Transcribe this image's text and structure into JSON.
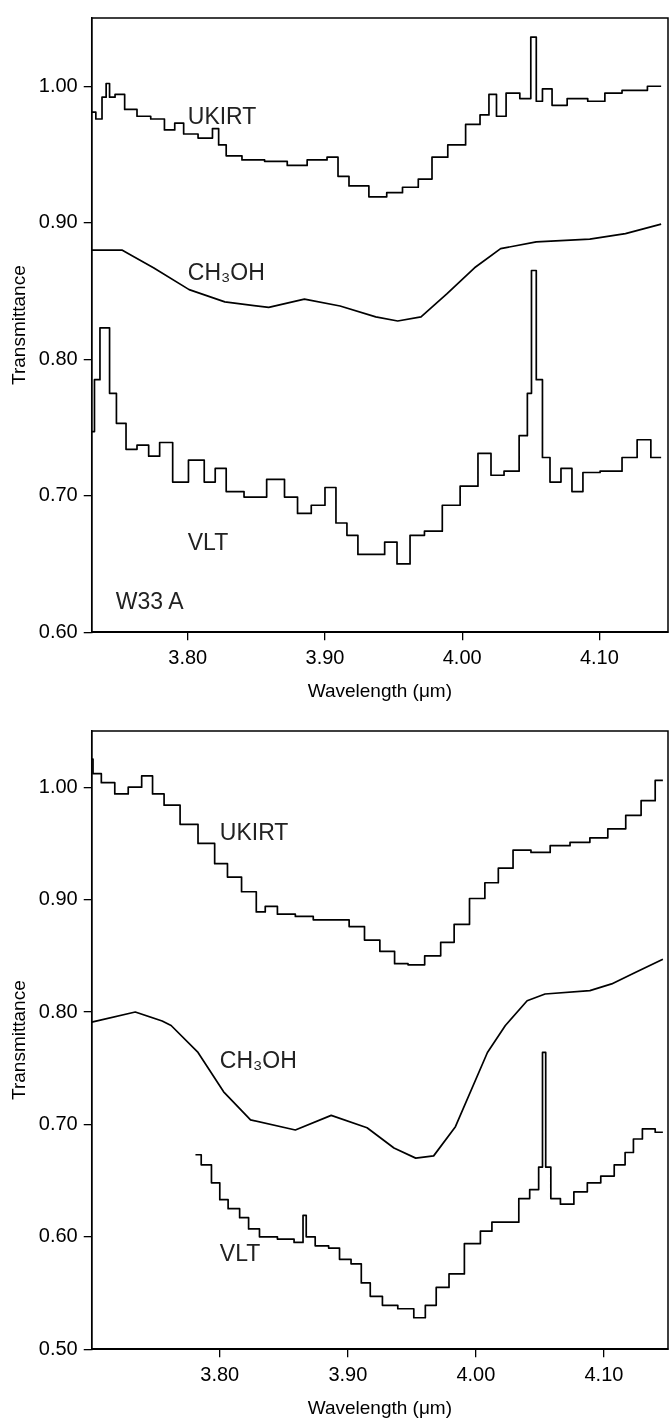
{
  "chart_data": [
    {
      "type": "step",
      "xlabel": "Wavelength (μm)",
      "ylabel": "Transmittance",
      "xlim": [
        3.73,
        4.15
      ],
      "ylim": [
        0.6,
        1.05
      ],
      "xticks": [
        {
          "value": 3.8,
          "label": "3.80"
        },
        {
          "value": 3.9,
          "label": "3.90"
        },
        {
          "value": 4.0,
          "label": "4.00"
        },
        {
          "value": 4.1,
          "label": "4.10"
        }
      ],
      "yticks": [
        {
          "value": 0.6,
          "label": "0.60"
        },
        {
          "value": 0.7,
          "label": "0.70"
        },
        {
          "value": 0.8,
          "label": "0.80"
        },
        {
          "value": 0.9,
          "label": "0.90"
        },
        {
          "value": 1.0,
          "label": "1.00"
        }
      ],
      "annotations": [
        "W33 A"
      ],
      "series": [
        {
          "name": "UKIRT",
          "color": "#000000",
          "x": [
            3.73,
            3.736,
            3.739,
            3.742,
            3.744,
            3.75,
            3.758,
            3.768,
            3.778,
            3.788,
            3.793,
            3.801,
            3.814,
            3.822,
            3.823,
            3.833,
            3.846,
            3.866,
            3.879,
            3.895,
            3.908,
            3.911,
            3.924,
            3.94,
            3.95,
            3.963,
            3.973,
            3.983,
            3.996,
            4.009,
            4.017,
            4.022,
            4.028,
            4.036,
            4.048,
            4.052,
            4.056,
            4.061,
            4.07,
            4.083,
            4.1,
            4.108,
            4.125,
            4.145
          ],
          "values": [
            0.981,
            0.976,
            0.992,
            1.002,
            0.992,
            0.994,
            0.983,
            0.978,
            0.976,
            0.968,
            0.973,
            0.965,
            0.962,
            0.969,
            0.957,
            0.949,
            0.946,
            0.945,
            0.942,
            0.946,
            0.948,
            0.934,
            0.927,
            0.919,
            0.922,
            0.926,
            0.932,
            0.948,
            0.957,
            0.972,
            0.979,
            0.994,
            0.978,
            0.995,
            0.991,
            1.036,
            0.989,
            0.998,
            0.986,
            0.991,
            0.989,
            0.995,
            0.997,
            1.0
          ]
        },
        {
          "name": "CH₃OH",
          "type": "line",
          "color": "#000000",
          "x": [
            3.73,
            3.752,
            3.775,
            3.801,
            3.827,
            3.859,
            3.885,
            3.911,
            3.937,
            3.953,
            3.97,
            3.989,
            4.009,
            4.028,
            4.054,
            4.093,
            4.119,
            4.145
          ],
          "values": [
            0.88,
            0.88,
            0.867,
            0.851,
            0.842,
            0.838,
            0.844,
            0.839,
            0.831,
            0.828,
            0.831,
            0.848,
            0.867,
            0.881,
            0.886,
            0.888,
            0.892,
            0.899
          ]
        },
        {
          "name": "VLT",
          "color": "#000000",
          "x": [
            3.73,
            3.734,
            3.738,
            3.742,
            3.744,
            3.752,
            3.758,
            3.768,
            3.775,
            3.784,
            3.794,
            3.807,
            3.817,
            3.823,
            3.833,
            3.849,
            3.866,
            3.875,
            3.885,
            3.895,
            3.905,
            3.911,
            3.921,
            3.927,
            3.94,
            3.947,
            3.958,
            3.966,
            3.979,
            3.992,
            4.005,
            4.018,
            4.024,
            4.037,
            4.046,
            4.049,
            4.052,
            4.056,
            4.061,
            4.067,
            4.077,
            4.083,
            4.093,
            4.108,
            4.125,
            4.13,
            4.145
          ],
          "values": [
            0.747,
            0.785,
            0.823,
            0.823,
            0.775,
            0.753,
            0.734,
            0.737,
            0.729,
            0.739,
            0.71,
            0.726,
            0.71,
            0.72,
            0.703,
            0.699,
            0.712,
            0.699,
            0.687,
            0.693,
            0.706,
            0.68,
            0.671,
            0.657,
            0.657,
            0.666,
            0.65,
            0.671,
            0.674,
            0.693,
            0.707,
            0.731,
            0.715,
            0.718,
            0.744,
            0.775,
            0.865,
            0.785,
            0.728,
            0.71,
            0.72,
            0.703,
            0.717,
            0.718,
            0.728,
            0.741,
            0.728
          ]
        }
      ]
    },
    {
      "type": "step",
      "xlabel": "Wavelength (μm)",
      "ylabel": "Transmittance",
      "xlim": [
        3.7,
        4.15
      ],
      "ylim": [
        0.5,
        1.05
      ],
      "xticks": [
        {
          "value": 3.8,
          "label": "3.80"
        },
        {
          "value": 3.9,
          "label": "3.90"
        },
        {
          "value": 4.0,
          "label": "4.00"
        },
        {
          "value": 4.1,
          "label": "4.10"
        }
      ],
      "yticks": [
        {
          "value": 0.5,
          "label": "0.50"
        },
        {
          "value": 0.6,
          "label": "0.60"
        },
        {
          "value": 0.7,
          "label": "0.70"
        },
        {
          "value": 0.8,
          "label": "0.80"
        },
        {
          "value": 0.9,
          "label": "0.90"
        },
        {
          "value": 1.0,
          "label": "1.00"
        }
      ],
      "series": [
        {
          "name": "UKIRT",
          "color": "#000000",
          "x": [
            3.7,
            3.702,
            3.713,
            3.723,
            3.734,
            3.744,
            3.751,
            3.762,
            3.776,
            3.79,
            3.802,
            3.81,
            3.824,
            3.833,
            3.838,
            3.852,
            3.866,
            3.88,
            3.894,
            3.908,
            3.918,
            3.932,
            3.941,
            3.953,
            3.967,
            3.978,
            3.988,
            4.002,
            4.012,
            4.023,
            4.035,
            4.051,
            4.065,
            4.082,
            4.096,
            4.11,
            4.124,
            4.134,
            4.146
          ],
          "values": [
            1.025,
            1.012,
            1.004,
            0.994,
            1.0,
            1.01,
            0.994,
            0.984,
            0.967,
            0.95,
            0.932,
            0.92,
            0.907,
            0.889,
            0.894,
            0.887,
            0.885,
            0.882,
            0.882,
            0.876,
            0.864,
            0.854,
            0.843,
            0.842,
            0.85,
            0.862,
            0.878,
            0.901,
            0.915,
            0.928,
            0.944,
            0.942,
            0.948,
            0.951,
            0.955,
            0.963,
            0.975,
            0.988,
            1.006
          ]
        },
        {
          "name": "CH₃OH",
          "type": "line",
          "color": "#000000",
          "x": [
            3.7,
            3.734,
            3.755,
            3.762,
            3.783,
            3.803,
            3.824,
            3.859,
            3.887,
            3.915,
            3.936,
            3.953,
            3.967,
            3.984,
            4.009,
            4.023,
            4.04,
            4.054,
            4.089,
            4.106,
            4.124,
            4.146
          ],
          "values": [
            0.791,
            0.8,
            0.792,
            0.788,
            0.764,
            0.729,
            0.704,
            0.695,
            0.708,
            0.697,
            0.679,
            0.67,
            0.672,
            0.698,
            0.764,
            0.788,
            0.81,
            0.816,
            0.819,
            0.825,
            0.835,
            0.847
          ]
        },
        {
          "name": "VLT",
          "color": "#000000",
          "x": [
            3.781,
            3.79,
            3.797,
            3.803,
            3.81,
            3.821,
            3.824,
            3.838,
            3.852,
            3.864,
            3.866,
            3.869,
            3.88,
            3.89,
            3.897,
            3.908,
            3.913,
            3.922,
            3.932,
            3.946,
            3.957,
            3.964,
            3.974,
            3.984,
            3.998,
            4.009,
            4.016,
            4.03,
            4.037,
            4.047,
            4.051,
            4.053,
            4.056,
            4.061,
            4.071,
            4.082,
            4.092,
            4.103,
            4.113,
            4.12,
            4.126,
            4.134,
            4.146
          ],
          "values": [
            0.673,
            0.664,
            0.648,
            0.633,
            0.625,
            0.617,
            0.607,
            0.6,
            0.598,
            0.595,
            0.619,
            0.6,
            0.592,
            0.59,
            0.58,
            0.576,
            0.559,
            0.547,
            0.539,
            0.536,
            0.528,
            0.539,
            0.555,
            0.567,
            0.594,
            0.605,
            0.613,
            0.613,
            0.634,
            0.642,
            0.662,
            0.764,
            0.662,
            0.634,
            0.629,
            0.64,
            0.648,
            0.654,
            0.664,
            0.675,
            0.687,
            0.696,
            0.693
          ]
        }
      ]
    }
  ]
}
